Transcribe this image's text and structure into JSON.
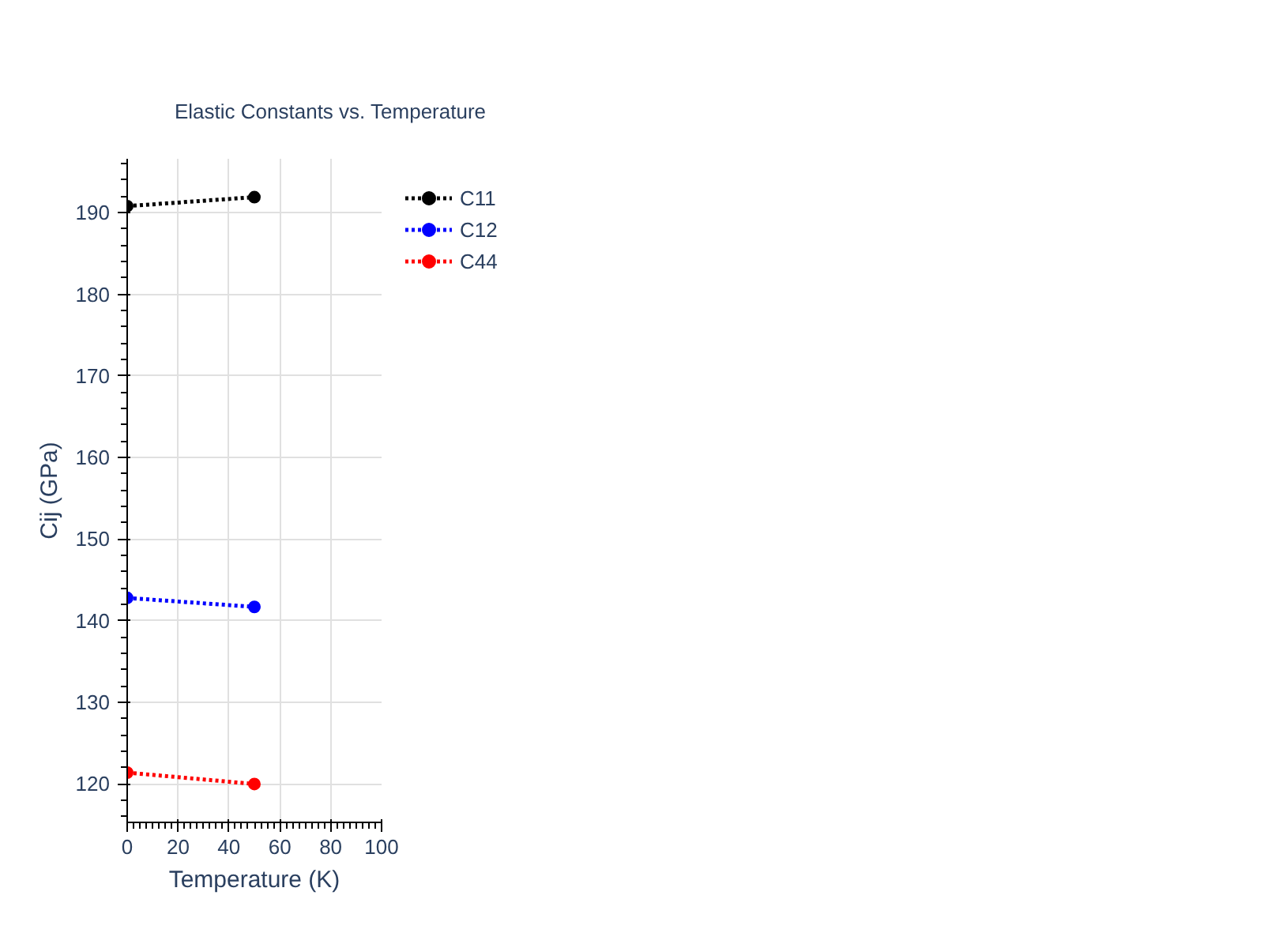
{
  "chart_data": {
    "type": "line",
    "title": "Elastic Constants vs. Temperature",
    "xlabel": "Temperature (K)",
    "ylabel": "Cij (GPa)",
    "x": [
      0,
      50
    ],
    "series": [
      {
        "name": "C11",
        "color": "#000000",
        "values": [
          190.8,
          191.9
        ]
      },
      {
        "name": "C12",
        "color": "#0000ff",
        "values": [
          142.8,
          141.7
        ]
      },
      {
        "name": "C44",
        "color": "#ff0000",
        "values": [
          121.4,
          120.0
        ]
      }
    ],
    "xlim": [
      0,
      100
    ],
    "xticks": [
      0,
      20,
      40,
      60,
      80,
      100
    ],
    "ylim": [
      115.3,
      196.6
    ],
    "yticks": [
      120,
      130,
      140,
      150,
      160,
      170,
      180,
      190
    ],
    "grid": true,
    "legend": "top right",
    "marker": "circle",
    "line_style": "dotted"
  }
}
